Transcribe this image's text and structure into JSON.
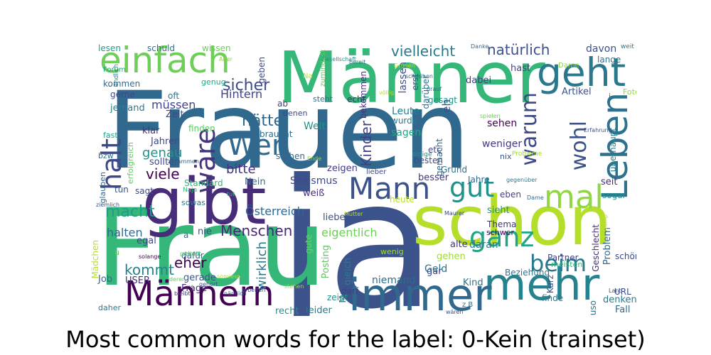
{
  "caption": "Most common words for the label: 0-Kein (trainset)",
  "colors": {
    "palette": "viridis",
    "background": "#ffffff",
    "caption_text": "#000000"
  },
  "words": [
    "Frauen",
    "ja",
    "Frau",
    "Männer",
    "schon",
    "gibt",
    "mehr",
    "immer",
    "einfach",
    "geht",
    "Männern",
    "Mann",
    "mal",
    "wäre",
    "halt",
    "Leben",
    "beim",
    "ganz",
    "Wer",
    "wohl",
    "gut",
    "warum",
    "Menschen",
    "vielleicht",
    "natürlich",
    "hätte",
    "macht",
    "genau",
    "viele",
    "bitte",
    "sicher",
    "kommt",
    "wirklich",
    "Kinder",
    "eher",
    "Österreich",
    "Sexismus",
    "eigentlich",
    "Leute",
    "halten",
    "sagen",
    "wurde",
    "Geld",
    "Jahre",
    "heute",
    "niemand",
    "Hintern",
    "Welt",
    "sehen",
    "weniger",
    "davon",
    "lange",
    "hast",
    "Artikel",
    "dabei",
    "gemacht",
    "gesagt",
    "etc",
    "daran",
    "Thema",
    "lassen",
    "bekommen",
    "zumindest",
    "Job",
    "USER",
    "recht",
    "leider",
    "Frage",
    "Fall",
    "denken",
    "genauso",
    "gerade",
    "dafür",
    "oft",
    "müssen",
    "Zeit",
    "klar",
    "Jahren",
    "sollten",
    "tun",
    "sagt",
    "Nein",
    "weiß",
    "liebe",
    "Posting",
    "gleich",
    "gute",
    "Kind",
    "gar",
    "alte",
    "Kurz",
    "gehen",
    "Partner",
    "Problem",
    "Geschlecht",
    "seit",
    "sogar",
    "eben",
    "sieht",
    "Grund",
    "besser",
    "besten",
    "zeigen",
    "stehen",
    "braucht",
    "finden",
    "Mädchen",
    "Meinung",
    "zeigt",
    "darf",
    "schön",
    "überhaupt",
    "Beziehung",
    "finde",
    "URL",
    "nie",
    "egal",
    "Standard",
    "a",
    "echt",
    "denen",
    "erst",
    "darüber",
    "ab",
    "geben",
    "genug",
    "gerne",
    "jemand",
    "kommen",
    "Forum",
    "lesen",
    "schuld",
    "wissen",
    "fast",
    "bzw",
    "glauben",
    "daher",
    "Foto",
    "i",
    "eh",
    "sowas",
    "meisten",
    "wenig",
    "schwer",
    "nix",
    "lieber",
    "einige",
    "Probleme",
    "Dame",
    "z B",
    "weit",
    "Danke",
    "Alter",
    "endlich",
    "bereit",
    "völlig",
    "drauf",
    "spielen",
    "Erfahrung",
    "schreiben",
    "Gesellschaft",
    "Mutter",
    "Maurer",
    "arbeiten",
    "schaut",
    "posten",
    "tut",
    "Naja",
    "ziemlich",
    "solange",
    "bleibt",
    "nämlich",
    "gehört",
    "somieso",
    "deren",
    "Trump",
    "Na",
    "u",
    "Grünen",
    "Ende",
    "gegenüber",
    "Dame",
    "wären",
    "Land",
    "stehen",
    "erfolgreich",
    "zusammen",
    "steht"
  ]
}
